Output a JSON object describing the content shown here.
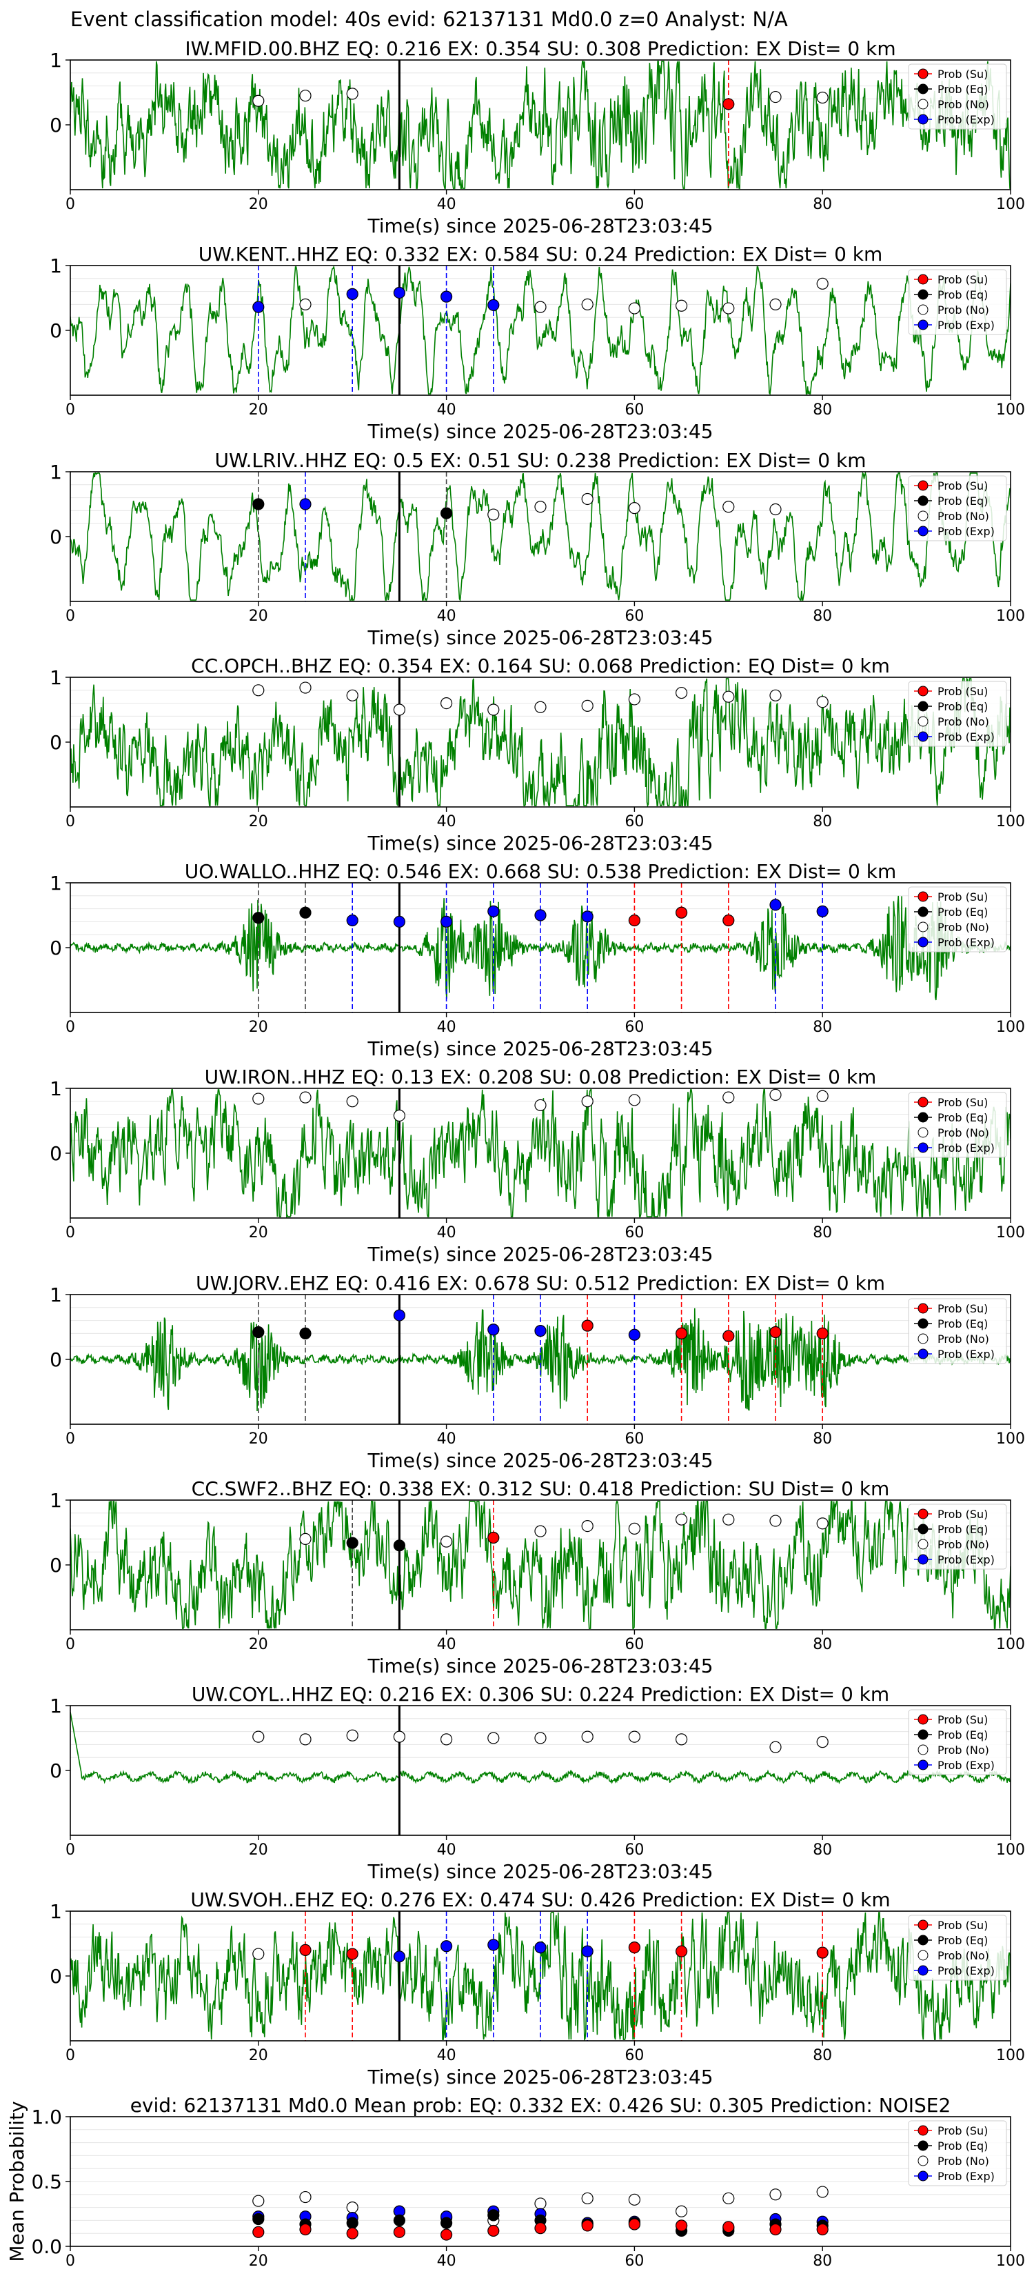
{
  "suptitle": "Event classification model: 40s evid: 62137131 Md0.0 z=0 Analyst: N/A",
  "xlabel": "Time(s) since 2025-06-28T23:03:45",
  "legend": [
    "Prob (Su)",
    "Prob (Eq)",
    "Prob (No)",
    "Prob (Exp)"
  ],
  "colors": {
    "trace": "#008000",
    "su": "#ff0000",
    "eq": "#000000",
    "no": "#ffffff",
    "exp": "#0000ff",
    "event_line": "#000000",
    "grid": "#e6e6e6"
  },
  "chart_data": [
    {
      "type": "line",
      "title": "IW.MFID.00.BHZ   EQ: 0.216   EX: 0.354   SU: 0.308   Prediction: EX    Dist= 0 km",
      "trace_style": "dense",
      "xlim": [
        0,
        100
      ],
      "ylim": [
        -1,
        1
      ],
      "xticks": [
        0,
        20,
        40,
        60,
        80,
        100
      ],
      "yticks": [
        0,
        1
      ],
      "event_time": 35,
      "points": [
        {
          "x": 20,
          "y": 0.37,
          "class": "no"
        },
        {
          "x": 25,
          "y": 0.45,
          "class": "no"
        },
        {
          "x": 30,
          "y": 0.48,
          "class": "no"
        },
        {
          "x": 70,
          "y": 0.32,
          "class": "su"
        },
        {
          "x": 75,
          "y": 0.43,
          "class": "no"
        },
        {
          "x": 80,
          "y": 0.42,
          "class": "no"
        }
      ]
    },
    {
      "type": "line",
      "title": "UW.KENT..HHZ   EQ: 0.332   EX: 0.584   SU: 0.24   Prediction: EX    Dist= 0 km",
      "trace_style": "oscillatory",
      "xlim": [
        0,
        100
      ],
      "ylim": [
        -1,
        1
      ],
      "xticks": [
        0,
        20,
        40,
        60,
        80,
        100
      ],
      "yticks": [
        0,
        1
      ],
      "event_time": 35,
      "points": [
        {
          "x": 20,
          "y": 0.36,
          "class": "exp"
        },
        {
          "x": 25,
          "y": 0.4,
          "class": "no"
        },
        {
          "x": 30,
          "y": 0.56,
          "class": "exp"
        },
        {
          "x": 35,
          "y": 0.58,
          "class": "exp"
        },
        {
          "x": 40,
          "y": 0.52,
          "class": "exp"
        },
        {
          "x": 45,
          "y": 0.39,
          "class": "exp"
        },
        {
          "x": 50,
          "y": 0.36,
          "class": "no"
        },
        {
          "x": 55,
          "y": 0.4,
          "class": "no"
        },
        {
          "x": 60,
          "y": 0.34,
          "class": "no"
        },
        {
          "x": 65,
          "y": 0.38,
          "class": "no"
        },
        {
          "x": 70,
          "y": 0.34,
          "class": "no"
        },
        {
          "x": 75,
          "y": 0.4,
          "class": "no"
        },
        {
          "x": 80,
          "y": 0.72,
          "class": "no"
        }
      ]
    },
    {
      "type": "line",
      "title": "UW.LRIV..HHZ   EQ: 0.5   EX: 0.51   SU: 0.238   Prediction: EX    Dist= 0 km",
      "trace_style": "oscillatory",
      "xlim": [
        0,
        100
      ],
      "ylim": [
        -1,
        1
      ],
      "xticks": [
        0,
        20,
        40,
        60,
        80,
        100
      ],
      "yticks": [
        0,
        1
      ],
      "event_time": 35,
      "points": [
        {
          "x": 20,
          "y": 0.5,
          "class": "eq"
        },
        {
          "x": 25,
          "y": 0.5,
          "class": "exp"
        },
        {
          "x": 40,
          "y": 0.36,
          "class": "eq"
        },
        {
          "x": 45,
          "y": 0.34,
          "class": "no"
        },
        {
          "x": 50,
          "y": 0.46,
          "class": "no"
        },
        {
          "x": 55,
          "y": 0.58,
          "class": "no"
        },
        {
          "x": 60,
          "y": 0.44,
          "class": "no"
        },
        {
          "x": 70,
          "y": 0.46,
          "class": "no"
        },
        {
          "x": 75,
          "y": 0.42,
          "class": "no"
        }
      ]
    },
    {
      "type": "line",
      "title": "CC.OPCH..BHZ   EQ: 0.354   EX: 0.164   SU: 0.068   Prediction: EQ    Dist= 0 km",
      "trace_style": "dense",
      "xlim": [
        0,
        100
      ],
      "ylim": [
        -1,
        1
      ],
      "xticks": [
        0,
        20,
        40,
        60,
        80,
        100
      ],
      "yticks": [
        0,
        1
      ],
      "event_time": 35,
      "points": [
        {
          "x": 20,
          "y": 0.8,
          "class": "no"
        },
        {
          "x": 25,
          "y": 0.84,
          "class": "no"
        },
        {
          "x": 30,
          "y": 0.72,
          "class": "no"
        },
        {
          "x": 35,
          "y": 0.5,
          "class": "no"
        },
        {
          "x": 40,
          "y": 0.6,
          "class": "no"
        },
        {
          "x": 45,
          "y": 0.5,
          "class": "no"
        },
        {
          "x": 50,
          "y": 0.54,
          "class": "no"
        },
        {
          "x": 55,
          "y": 0.56,
          "class": "no"
        },
        {
          "x": 60,
          "y": 0.66,
          "class": "no"
        },
        {
          "x": 65,
          "y": 0.76,
          "class": "no"
        },
        {
          "x": 70,
          "y": 0.7,
          "class": "no"
        },
        {
          "x": 75,
          "y": 0.72,
          "class": "no"
        },
        {
          "x": 80,
          "y": 0.62,
          "class": "no"
        }
      ]
    },
    {
      "type": "line",
      "title": "UO.WALLO..HHZ   EQ: 0.546   EX: 0.668   SU: 0.538   Prediction: EX    Dist= 0 km",
      "trace_style": "bursty",
      "bursts": [
        20,
        40,
        45,
        55,
        75,
        88,
        92
      ],
      "xlim": [
        0,
        100
      ],
      "ylim": [
        -1,
        1
      ],
      "xticks": [
        0,
        20,
        40,
        60,
        80,
        100
      ],
      "yticks": [
        0,
        1
      ],
      "event_time": 35,
      "points": [
        {
          "x": 20,
          "y": 0.46,
          "class": "eq"
        },
        {
          "x": 25,
          "y": 0.54,
          "class": "eq"
        },
        {
          "x": 30,
          "y": 0.42,
          "class": "exp"
        },
        {
          "x": 35,
          "y": 0.4,
          "class": "exp"
        },
        {
          "x": 40,
          "y": 0.4,
          "class": "exp"
        },
        {
          "x": 45,
          "y": 0.56,
          "class": "exp"
        },
        {
          "x": 50,
          "y": 0.5,
          "class": "exp"
        },
        {
          "x": 55,
          "y": 0.48,
          "class": "exp"
        },
        {
          "x": 60,
          "y": 0.42,
          "class": "su"
        },
        {
          "x": 65,
          "y": 0.54,
          "class": "su"
        },
        {
          "x": 70,
          "y": 0.42,
          "class": "su"
        },
        {
          "x": 75,
          "y": 0.66,
          "class": "exp"
        },
        {
          "x": 80,
          "y": 0.56,
          "class": "exp"
        }
      ]
    },
    {
      "type": "line",
      "title": "UW.IRON..HHZ   EQ: 0.13   EX: 0.208   SU: 0.08   Prediction: EX    Dist= 0 km",
      "trace_style": "dense",
      "xlim": [
        0,
        100
      ],
      "ylim": [
        -1,
        1
      ],
      "xticks": [
        0,
        20,
        40,
        60,
        80,
        100
      ],
      "yticks": [
        0,
        1
      ],
      "event_time": 35,
      "points": [
        {
          "x": 20,
          "y": 0.84,
          "class": "no"
        },
        {
          "x": 25,
          "y": 0.86,
          "class": "no"
        },
        {
          "x": 30,
          "y": 0.8,
          "class": "no"
        },
        {
          "x": 35,
          "y": 0.58,
          "class": "no"
        },
        {
          "x": 50,
          "y": 0.74,
          "class": "no"
        },
        {
          "x": 55,
          "y": 0.8,
          "class": "no"
        },
        {
          "x": 60,
          "y": 0.82,
          "class": "no"
        },
        {
          "x": 70,
          "y": 0.86,
          "class": "no"
        },
        {
          "x": 75,
          "y": 0.9,
          "class": "no"
        },
        {
          "x": 80,
          "y": 0.88,
          "class": "no"
        }
      ]
    },
    {
      "type": "line",
      "title": "UW.JORV..EHZ   EQ: 0.416   EX: 0.678   SU: 0.512   Prediction: EX    Dist= 0 km",
      "trace_style": "bursty",
      "bursts": [
        10,
        20,
        44,
        52,
        66,
        72,
        76,
        80
      ],
      "xlim": [
        0,
        100
      ],
      "ylim": [
        -1,
        1
      ],
      "xticks": [
        0,
        20,
        40,
        60,
        80,
        100
      ],
      "yticks": [
        0,
        1
      ],
      "event_time": 35,
      "points": [
        {
          "x": 20,
          "y": 0.42,
          "class": "eq"
        },
        {
          "x": 25,
          "y": 0.4,
          "class": "eq"
        },
        {
          "x": 35,
          "y": 0.68,
          "class": "exp"
        },
        {
          "x": 45,
          "y": 0.46,
          "class": "exp"
        },
        {
          "x": 50,
          "y": 0.44,
          "class": "exp"
        },
        {
          "x": 55,
          "y": 0.52,
          "class": "su"
        },
        {
          "x": 60,
          "y": 0.38,
          "class": "exp"
        },
        {
          "x": 65,
          "y": 0.4,
          "class": "su"
        },
        {
          "x": 70,
          "y": 0.36,
          "class": "su"
        },
        {
          "x": 75,
          "y": 0.42,
          "class": "su"
        },
        {
          "x": 80,
          "y": 0.4,
          "class": "su"
        }
      ]
    },
    {
      "type": "line",
      "title": "CC.SWF2..BHZ   EQ: 0.338   EX: 0.312   SU: 0.418   Prediction: SU    Dist= 0 km",
      "trace_style": "dense",
      "xlim": [
        0,
        100
      ],
      "ylim": [
        -1,
        1
      ],
      "xticks": [
        0,
        20,
        40,
        60,
        80,
        100
      ],
      "yticks": [
        0,
        1
      ],
      "event_time": 35,
      "points": [
        {
          "x": 25,
          "y": 0.4,
          "class": "no"
        },
        {
          "x": 30,
          "y": 0.34,
          "class": "eq"
        },
        {
          "x": 35,
          "y": 0.3,
          "class": "eq"
        },
        {
          "x": 40,
          "y": 0.36,
          "class": "no"
        },
        {
          "x": 45,
          "y": 0.42,
          "class": "su"
        },
        {
          "x": 50,
          "y": 0.52,
          "class": "no"
        },
        {
          "x": 55,
          "y": 0.6,
          "class": "no"
        },
        {
          "x": 60,
          "y": 0.56,
          "class": "no"
        },
        {
          "x": 65,
          "y": 0.7,
          "class": "no"
        },
        {
          "x": 70,
          "y": 0.7,
          "class": "no"
        },
        {
          "x": 75,
          "y": 0.68,
          "class": "no"
        },
        {
          "x": 80,
          "y": 0.64,
          "class": "no"
        }
      ]
    },
    {
      "type": "line",
      "title": "UW.COYL..HHZ   EQ: 0.216   EX: 0.306   SU: 0.224   Prediction: EX    Dist= 0 km",
      "trace_style": "quiet",
      "xlim": [
        0,
        100
      ],
      "ylim": [
        -1,
        1
      ],
      "xticks": [
        0,
        20,
        40,
        60,
        80,
        100
      ],
      "yticks": [
        0,
        1
      ],
      "event_time": 35,
      "points": [
        {
          "x": 20,
          "y": 0.52,
          "class": "no"
        },
        {
          "x": 25,
          "y": 0.48,
          "class": "no"
        },
        {
          "x": 30,
          "y": 0.54,
          "class": "no"
        },
        {
          "x": 35,
          "y": 0.52,
          "class": "no"
        },
        {
          "x": 40,
          "y": 0.48,
          "class": "no"
        },
        {
          "x": 45,
          "y": 0.5,
          "class": "no"
        },
        {
          "x": 50,
          "y": 0.5,
          "class": "no"
        },
        {
          "x": 55,
          "y": 0.52,
          "class": "no"
        },
        {
          "x": 60,
          "y": 0.52,
          "class": "no"
        },
        {
          "x": 65,
          "y": 0.48,
          "class": "no"
        },
        {
          "x": 75,
          "y": 0.36,
          "class": "no"
        },
        {
          "x": 80,
          "y": 0.44,
          "class": "no"
        }
      ]
    },
    {
      "type": "line",
      "title": "UW.SVOH..EHZ   EQ: 0.276   EX: 0.474   SU: 0.426   Prediction: EX    Dist= 0 km",
      "trace_style": "dense",
      "xlim": [
        0,
        100
      ],
      "ylim": [
        -1,
        1
      ],
      "xticks": [
        0,
        20,
        40,
        60,
        80,
        100
      ],
      "yticks": [
        0,
        1
      ],
      "event_time": 35,
      "points": [
        {
          "x": 20,
          "y": 0.34,
          "class": "no"
        },
        {
          "x": 25,
          "y": 0.4,
          "class": "su"
        },
        {
          "x": 30,
          "y": 0.34,
          "class": "su"
        },
        {
          "x": 35,
          "y": 0.3,
          "class": "exp"
        },
        {
          "x": 40,
          "y": 0.46,
          "class": "exp"
        },
        {
          "x": 45,
          "y": 0.48,
          "class": "exp"
        },
        {
          "x": 50,
          "y": 0.44,
          "class": "exp"
        },
        {
          "x": 55,
          "y": 0.38,
          "class": "exp"
        },
        {
          "x": 60,
          "y": 0.44,
          "class": "su"
        },
        {
          "x": 65,
          "y": 0.38,
          "class": "su"
        },
        {
          "x": 80,
          "y": 0.36,
          "class": "su"
        }
      ]
    },
    {
      "type": "scatter",
      "title": "evid: 62137131  Md0.0   Mean prob:   EQ: 0.332   EX: 0.426   SU: 0.305   Prediction: NOISE2",
      "ylabel": "Mean Probability",
      "xlim": [
        0,
        100
      ],
      "ylim": [
        0,
        1
      ],
      "xticks": [
        0,
        20,
        40,
        60,
        80,
        100
      ],
      "yticks": [
        0.0,
        0.5,
        1.0
      ],
      "ytick_labels": [
        "0.0",
        "0.5",
        "1.0"
      ],
      "x": [
        20,
        25,
        30,
        35,
        40,
        45,
        50,
        55,
        60,
        65,
        70,
        75,
        80
      ],
      "series": [
        {
          "name": "Prob (No)",
          "class": "no",
          "values": [
            0.35,
            0.38,
            0.3,
            0.27,
            0.22,
            0.2,
            0.33,
            0.37,
            0.36,
            0.27,
            0.37,
            0.4,
            0.42
          ]
        },
        {
          "name": "Prob (Exp)",
          "class": "exp",
          "values": [
            0.23,
            0.23,
            0.22,
            0.27,
            0.23,
            0.27,
            0.25,
            0.18,
            0.19,
            0.16,
            0.14,
            0.21,
            0.19
          ]
        },
        {
          "name": "Prob (Eq)",
          "class": "eq",
          "values": [
            0.21,
            0.17,
            0.18,
            0.2,
            0.18,
            0.24,
            0.2,
            0.17,
            0.18,
            0.12,
            0.12,
            0.17,
            0.16
          ]
        },
        {
          "name": "Prob (Su)",
          "class": "su",
          "values": [
            0.11,
            0.13,
            0.1,
            0.11,
            0.09,
            0.12,
            0.14,
            0.16,
            0.17,
            0.16,
            0.15,
            0.13,
            0.13
          ]
        }
      ]
    }
  ]
}
